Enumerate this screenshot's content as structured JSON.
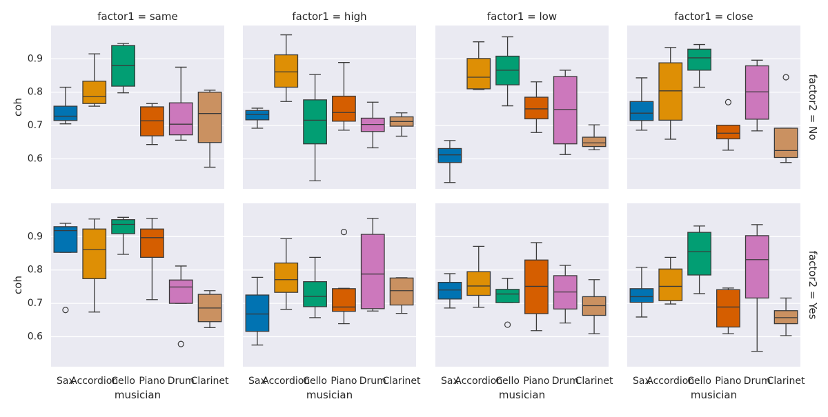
{
  "chart_data": {
    "type": "box",
    "facet_cols": {
      "variable": "factor1",
      "levels": [
        "same",
        "high",
        "low",
        "close"
      ]
    },
    "facet_rows": {
      "variable": "factor2",
      "levels": [
        "No",
        "Yes"
      ]
    },
    "col_titles": [
      "factor1 = same",
      "factor1 = high",
      "factor1 = low",
      "factor1 = close"
    ],
    "row_titles": [
      "factor2 = No",
      "factor2 = Yes"
    ],
    "categories": [
      "Sax",
      "Accordion",
      "Cello",
      "Piano",
      "Drum",
      "Clarinet"
    ],
    "colors": [
      "#0173b2",
      "#de8f05",
      "#029e73",
      "#d55e00",
      "#cc78bc",
      "#ca9161"
    ],
    "xlabel": "musician",
    "ylabel": "coh",
    "ylim": [
      0.51,
      1.0
    ],
    "yticks": [
      0.6,
      0.7,
      0.8,
      0.9
    ],
    "ytick_labels": [
      "0.6",
      "0.7",
      "0.8",
      "0.9"
    ],
    "grid": true,
    "panels": [
      {
        "row": "No",
        "col": "same",
        "boxes": [
          {
            "category": "Sax",
            "whislo": 0.705,
            "q1": 0.715,
            "med": 0.728,
            "q3": 0.758,
            "whishi": 0.815,
            "fliers": []
          },
          {
            "category": "Accordion",
            "whislo": 0.758,
            "q1": 0.766,
            "med": 0.787,
            "q3": 0.833,
            "whishi": 0.915,
            "fliers": []
          },
          {
            "category": "Cello",
            "whislo": 0.798,
            "q1": 0.818,
            "med": 0.88,
            "q3": 0.94,
            "whishi": 0.946,
            "fliers": []
          },
          {
            "category": "Piano",
            "whislo": 0.643,
            "q1": 0.669,
            "med": 0.714,
            "q3": 0.756,
            "whishi": 0.766,
            "fliers": []
          },
          {
            "category": "Drum",
            "whislo": 0.656,
            "q1": 0.672,
            "med": 0.704,
            "q3": 0.768,
            "whishi": 0.875,
            "fliers": []
          },
          {
            "category": "Clarinet",
            "whislo": 0.575,
            "q1": 0.649,
            "med": 0.736,
            "q3": 0.8,
            "whishi": 0.806,
            "fliers": []
          }
        ]
      },
      {
        "row": "No",
        "col": "high",
        "boxes": [
          {
            "category": "Sax",
            "whislo": 0.692,
            "q1": 0.717,
            "med": 0.733,
            "q3": 0.745,
            "whishi": 0.752,
            "fliers": []
          },
          {
            "category": "Accordion",
            "whislo": 0.772,
            "q1": 0.815,
            "med": 0.861,
            "q3": 0.912,
            "whishi": 0.972,
            "fliers": []
          },
          {
            "category": "Cello",
            "whislo": 0.534,
            "q1": 0.645,
            "med": 0.716,
            "q3": 0.777,
            "whishi": 0.853,
            "fliers": []
          },
          {
            "category": "Piano",
            "whislo": 0.686,
            "q1": 0.713,
            "med": 0.739,
            "q3": 0.788,
            "whishi": 0.889,
            "fliers": []
          },
          {
            "category": "Drum",
            "whislo": 0.633,
            "q1": 0.682,
            "med": 0.703,
            "q3": 0.722,
            "whishi": 0.77,
            "fliers": []
          },
          {
            "category": "Clarinet",
            "whislo": 0.668,
            "q1": 0.698,
            "med": 0.712,
            "q3": 0.726,
            "whishi": 0.738,
            "fliers": []
          }
        ]
      },
      {
        "row": "No",
        "col": "low",
        "boxes": [
          {
            "category": "Sax",
            "whislo": 0.529,
            "q1": 0.589,
            "med": 0.612,
            "q3": 0.631,
            "whishi": 0.655,
            "fliers": []
          },
          {
            "category": "Accordion",
            "whislo": 0.808,
            "q1": 0.81,
            "med": 0.845,
            "q3": 0.901,
            "whishi": 0.951,
            "fliers": []
          },
          {
            "category": "Cello",
            "whislo": 0.759,
            "q1": 0.822,
            "med": 0.866,
            "q3": 0.908,
            "whishi": 0.966,
            "fliers": []
          },
          {
            "category": "Piano",
            "whislo": 0.679,
            "q1": 0.72,
            "med": 0.75,
            "q3": 0.785,
            "whishi": 0.831,
            "fliers": []
          },
          {
            "category": "Drum",
            "whislo": 0.613,
            "q1": 0.645,
            "med": 0.748,
            "q3": 0.847,
            "whishi": 0.866,
            "fliers": []
          },
          {
            "category": "Clarinet",
            "whislo": 0.627,
            "q1": 0.637,
            "med": 0.648,
            "q3": 0.665,
            "whishi": 0.702,
            "fliers": []
          }
        ]
      },
      {
        "row": "No",
        "col": "close",
        "boxes": [
          {
            "category": "Sax",
            "whislo": 0.686,
            "q1": 0.715,
            "med": 0.737,
            "q3": 0.772,
            "whishi": 0.843,
            "fliers": []
          },
          {
            "category": "Accordion",
            "whislo": 0.659,
            "q1": 0.716,
            "med": 0.804,
            "q3": 0.888,
            "whishi": 0.934,
            "fliers": []
          },
          {
            "category": "Cello",
            "whislo": 0.815,
            "q1": 0.866,
            "med": 0.903,
            "q3": 0.929,
            "whishi": 0.943,
            "fliers": []
          },
          {
            "category": "Piano",
            "whislo": 0.626,
            "q1": 0.66,
            "med": 0.677,
            "q3": 0.701,
            "whishi": 0.701,
            "fliers": [
              0.77
            ]
          },
          {
            "category": "Drum",
            "whislo": 0.684,
            "q1": 0.719,
            "med": 0.801,
            "q3": 0.879,
            "whishi": 0.896,
            "fliers": []
          },
          {
            "category": "Clarinet",
            "whislo": 0.589,
            "q1": 0.604,
            "med": 0.625,
            "q3": 0.692,
            "whishi": 0.692,
            "fliers": [
              0.845
            ]
          }
        ]
      },
      {
        "row": "Yes",
        "col": "same",
        "boxes": [
          {
            "category": "Sax",
            "whislo": 0.853,
            "q1": 0.853,
            "med": 0.918,
            "q3": 0.93,
            "whishi": 0.94,
            "fliers": [
              0.68
            ]
          },
          {
            "category": "Accordion",
            "whislo": 0.674,
            "q1": 0.774,
            "med": 0.861,
            "q3": 0.923,
            "whishi": 0.953,
            "fliers": []
          },
          {
            "category": "Cello",
            "whislo": 0.847,
            "q1": 0.909,
            "med": 0.937,
            "q3": 0.951,
            "whishi": 0.958,
            "fliers": []
          },
          {
            "category": "Piano",
            "whislo": 0.711,
            "q1": 0.838,
            "med": 0.897,
            "q3": 0.923,
            "whishi": 0.955,
            "fliers": []
          },
          {
            "category": "Drum",
            "whislo": 0.7,
            "q1": 0.7,
            "med": 0.749,
            "q3": 0.77,
            "whishi": 0.812,
            "fliers": [
              0.578
            ]
          },
          {
            "category": "Clarinet",
            "whislo": 0.627,
            "q1": 0.645,
            "med": 0.686,
            "q3": 0.727,
            "whishi": 0.738,
            "fliers": []
          }
        ]
      },
      {
        "row": "Yes",
        "col": "high",
        "boxes": [
          {
            "category": "Sax",
            "whislo": 0.575,
            "q1": 0.616,
            "med": 0.668,
            "q3": 0.725,
            "whishi": 0.778,
            "fliers": []
          },
          {
            "category": "Accordion",
            "whislo": 0.682,
            "q1": 0.733,
            "med": 0.771,
            "q3": 0.821,
            "whishi": 0.894,
            "fliers": []
          },
          {
            "category": "Cello",
            "whislo": 0.657,
            "q1": 0.69,
            "med": 0.721,
            "q3": 0.765,
            "whishi": 0.838,
            "fliers": []
          },
          {
            "category": "Piano",
            "whislo": 0.639,
            "q1": 0.676,
            "med": 0.689,
            "q3": 0.744,
            "whishi": 0.745,
            "fliers": [
              0.914
            ]
          },
          {
            "category": "Drum",
            "whislo": 0.677,
            "q1": 0.684,
            "med": 0.788,
            "q3": 0.907,
            "whishi": 0.955,
            "fliers": []
          },
          {
            "category": "Clarinet",
            "whislo": 0.67,
            "q1": 0.695,
            "med": 0.738,
            "q3": 0.776,
            "whishi": 0.777,
            "fliers": []
          }
        ]
      },
      {
        "row": "Yes",
        "col": "low",
        "boxes": [
          {
            "category": "Sax",
            "whislo": 0.686,
            "q1": 0.713,
            "med": 0.74,
            "q3": 0.763,
            "whishi": 0.789,
            "fliers": []
          },
          {
            "category": "Accordion",
            "whislo": 0.688,
            "q1": 0.724,
            "med": 0.752,
            "q3": 0.795,
            "whishi": 0.871,
            "fliers": []
          },
          {
            "category": "Cello",
            "whislo": 0.702,
            "q1": 0.702,
            "med": 0.728,
            "q3": 0.742,
            "whishi": 0.775,
            "fliers": [
              0.636
            ]
          },
          {
            "category": "Piano",
            "whislo": 0.618,
            "q1": 0.669,
            "med": 0.751,
            "q3": 0.83,
            "whishi": 0.882,
            "fliers": []
          },
          {
            "category": "Drum",
            "whislo": 0.641,
            "q1": 0.683,
            "med": 0.734,
            "q3": 0.783,
            "whishi": 0.814,
            "fliers": []
          },
          {
            "category": "Clarinet",
            "whislo": 0.609,
            "q1": 0.664,
            "med": 0.693,
            "q3": 0.72,
            "whishi": 0.771,
            "fliers": []
          }
        ]
      },
      {
        "row": "Yes",
        "col": "close",
        "boxes": [
          {
            "category": "Sax",
            "whislo": 0.659,
            "q1": 0.703,
            "med": 0.72,
            "q3": 0.744,
            "whishi": 0.808,
            "fliers": []
          },
          {
            "category": "Accordion",
            "whislo": 0.698,
            "q1": 0.708,
            "med": 0.751,
            "q3": 0.803,
            "whishi": 0.838,
            "fliers": []
          },
          {
            "category": "Cello",
            "whislo": 0.729,
            "q1": 0.785,
            "med": 0.855,
            "q3": 0.913,
            "whishi": 0.932,
            "fliers": []
          },
          {
            "category": "Piano",
            "whislo": 0.609,
            "q1": 0.629,
            "med": 0.689,
            "q3": 0.741,
            "whishi": 0.746,
            "fliers": []
          },
          {
            "category": "Drum",
            "whislo": 0.556,
            "q1": 0.716,
            "med": 0.831,
            "q3": 0.903,
            "whishi": 0.936,
            "fliers": []
          },
          {
            "category": "Clarinet",
            "whislo": 0.603,
            "q1": 0.639,
            "med": 0.657,
            "q3": 0.678,
            "whishi": 0.716,
            "fliers": []
          }
        ]
      }
    ]
  }
}
